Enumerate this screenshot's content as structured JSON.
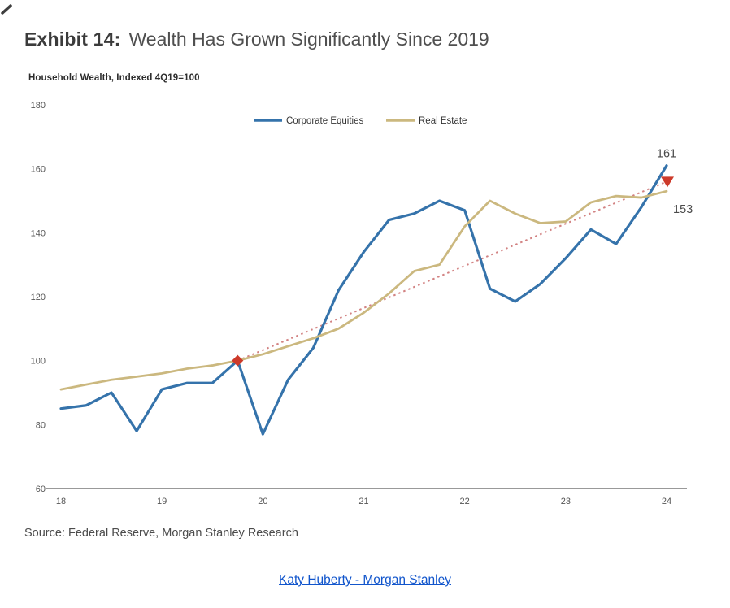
{
  "header": {
    "exhibit_label": "Exhibit 14:",
    "title": "Wealth Has Grown Significantly Since 2019"
  },
  "chart_data": {
    "type": "line",
    "subtitle": "Household Wealth, Indexed 4Q19=100",
    "quarters": [
      "1Q18",
      "2Q18",
      "3Q18",
      "4Q18",
      "1Q19",
      "2Q19",
      "3Q19",
      "4Q19",
      "1Q20",
      "2Q20",
      "3Q20",
      "4Q20",
      "1Q21",
      "2Q21",
      "3Q21",
      "4Q21",
      "1Q22",
      "2Q22",
      "3Q22",
      "4Q22",
      "1Q23",
      "2Q23",
      "3Q23",
      "4Q23",
      "1Q24"
    ],
    "x_tick_labels": [
      "18",
      "19",
      "20",
      "21",
      "22",
      "23",
      "24"
    ],
    "x_tick_indices": [
      0,
      4,
      8,
      12,
      16,
      20,
      24
    ],
    "y_ticks": [
      60,
      80,
      100,
      120,
      140,
      160,
      180
    ],
    "ylim": [
      60,
      180
    ],
    "grid": false,
    "legend_position": "top-center",
    "series": [
      {
        "name": "Corporate Equities",
        "color": "#3573ab",
        "values": [
          85,
          86,
          90,
          78,
          91,
          93,
          93,
          100,
          77,
          94,
          104,
          122,
          134,
          144,
          146,
          150,
          147,
          122.5,
          118.5,
          124,
          132,
          141,
          136.5,
          148,
          161
        ]
      },
      {
        "name": "Real Estate",
        "color": "#cbb87f",
        "values": [
          91,
          92.5,
          94,
          95,
          96,
          97.5,
          98.5,
          100,
          102,
          104.5,
          107,
          110,
          115,
          121,
          128,
          130,
          142,
          150,
          146,
          143,
          143.5,
          149.5,
          151.5,
          151,
          153
        ]
      }
    ],
    "trend": {
      "color": "#d28282",
      "marker_color": "#cd3a2a",
      "start_index": 7,
      "start_value": 100,
      "end_index": 24,
      "end_value": 156
    },
    "annotations": [
      {
        "text": "161",
        "series": "Corporate Equities"
      },
      {
        "text": "153",
        "series": "Real Estate"
      }
    ],
    "axis_color": "#999999"
  },
  "footer": {
    "source": "Source: Federal Reserve, Morgan Stanley Research",
    "link_label": "Katy Huberty - Morgan Stanley"
  }
}
